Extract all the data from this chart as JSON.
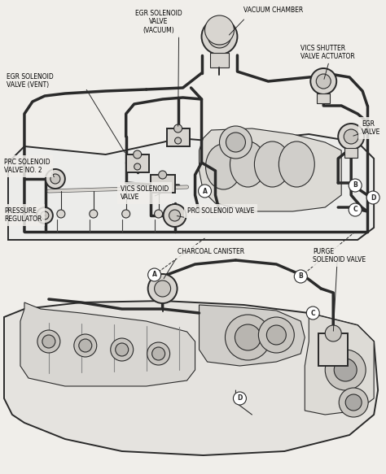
{
  "bg_color": "#f0eeea",
  "line_color": "#2a2a2a",
  "fill_light": "#e8e5e0",
  "fill_mid": "#d8d5d0",
  "fill_dark": "#c8c5c0",
  "white": "#ffffff",
  "figsize": [
    4.74,
    5.83
  ],
  "dpi": 100,
  "labels": {
    "egr_solenoid_vacuum": "EGR SOLENOID\nVALVE\n(VACUUM)",
    "vacuum_chamber": "VACUUM CHAMBER",
    "egr_solenoid_vent": "EGR SOLENOID\nVALVE (VENT)",
    "vics_shutter": "VICS SHUTTER\nVALVE ACTUATOR",
    "egr_valve": "EGR\nVALVE",
    "prc_solenoid_2": "PRC SOLENOID\nVALVE NO. 2",
    "vics_solenoid": "VICS SOLENOID\nVALVE",
    "prc_solenoid": "PRC SOLENOID VALVE",
    "pressure_reg": "PRESSURE\nREGULATOR",
    "charcoal": "CHARCOAL CANISTER",
    "purge_solenoid": "PURGE\nSOLENOID VALVE"
  },
  "label_fontsize": 5.5,
  "label_color": "#000000"
}
